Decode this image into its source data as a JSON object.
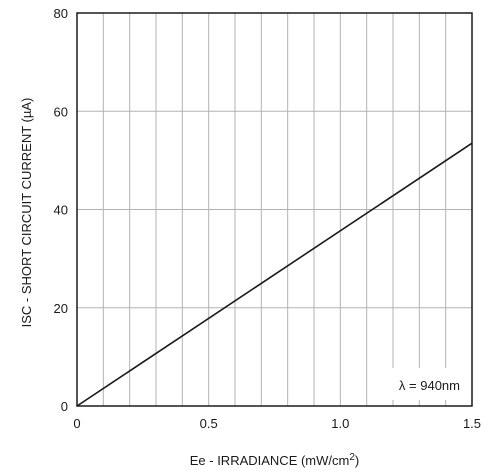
{
  "chart_data": {
    "type": "line",
    "xlabel": "Ee - IRRADIANCE (mW/cm",
    "xlabel_superscript": "2",
    "xlabel_suffix": ")",
    "ylabel": "ISC - SHORT CIRCUIT CURRENT (µA)",
    "xlim": [
      0,
      1.5
    ],
    "ylim": [
      0,
      80
    ],
    "x_ticks": [
      0,
      0.5,
      1.0,
      1.5
    ],
    "x_tick_labels": [
      "0",
      "0.5",
      "1.0",
      "1.5"
    ],
    "y_ticks": [
      0,
      20,
      40,
      60,
      80
    ],
    "y_tick_labels": [
      "0",
      "20",
      "40",
      "60",
      "80"
    ],
    "x_minor_step": 0.1,
    "y_minor_step": 20,
    "grid": true,
    "annotation": "λ = 940nm",
    "series": [
      {
        "x": [
          0,
          1.5
        ],
        "y": [
          0,
          53.5
        ],
        "color": "#1a1a1a"
      }
    ]
  }
}
